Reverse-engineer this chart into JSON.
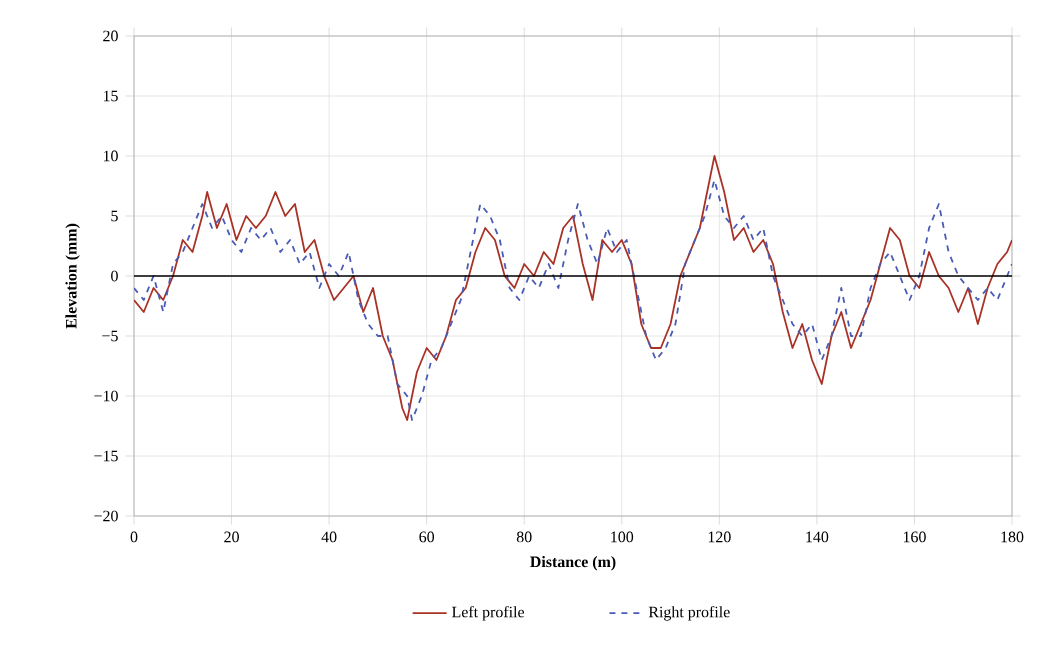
{
  "chart_data": {
    "type": "line",
    "xlabel": "Distance (m)",
    "ylabel": "Elevation (mm)",
    "xlim": [
      0,
      180
    ],
    "ylim": [
      -20,
      20
    ],
    "xticks": [
      0,
      20,
      40,
      60,
      80,
      100,
      120,
      140,
      160,
      180
    ],
    "yticks": [
      {
        "value": -20,
        "label": "−20"
      },
      {
        "value": -15,
        "label": "−15"
      },
      {
        "value": -10,
        "label": "−10"
      },
      {
        "value": -5,
        "label": "−5"
      },
      0,
      5,
      10,
      15,
      20
    ],
    "grid": true,
    "legend": "bottom",
    "ref_lines": [
      {
        "axis": "y",
        "value": 0,
        "color": "#000000"
      }
    ],
    "series": [
      {
        "name": "Left profile",
        "color": "#a93226",
        "line_style": "solid",
        "x": [
          0,
          2,
          4,
          6,
          8,
          10,
          12,
          14,
          15,
          17,
          19,
          21,
          23,
          25,
          27,
          29,
          31,
          33,
          35,
          37,
          39,
          41,
          43,
          45,
          47,
          49,
          51,
          53,
          55,
          56,
          58,
          60,
          62,
          64,
          66,
          68,
          70,
          72,
          74,
          76,
          78,
          80,
          82,
          84,
          86,
          88,
          90,
          92,
          94,
          96,
          98,
          100,
          102,
          104,
          106,
          108,
          110,
          112,
          114,
          116,
          118,
          119,
          121,
          123,
          125,
          127,
          129,
          131,
          133,
          135,
          137,
          139,
          141,
          143,
          145,
          147,
          149,
          151,
          153,
          155,
          157,
          159,
          161,
          163,
          165,
          167,
          169,
          171,
          173,
          175,
          177,
          179,
          180
        ],
        "values": [
          -2,
          -3,
          -1,
          -2,
          0,
          3,
          2,
          5,
          7,
          4,
          6,
          3,
          5,
          4,
          5,
          7,
          5,
          6,
          2,
          3,
          0,
          -2,
          -1,
          0,
          -3,
          -1,
          -5,
          -7,
          -11,
          -12,
          -8,
          -6,
          -7,
          -5,
          -2,
          -1,
          2,
          4,
          3,
          0,
          -1,
          1,
          0,
          2,
          1,
          4,
          5,
          1,
          -2,
          3,
          2,
          3,
          1,
          -4,
          -6,
          -6,
          -4,
          0,
          2,
          4,
          8,
          10,
          7,
          3,
          4,
          2,
          3,
          1,
          -3,
          -6,
          -4,
          -7,
          -9,
          -5,
          -3,
          -6,
          -4,
          -2,
          1,
          4,
          3,
          0,
          -1,
          2,
          0,
          -1,
          -3,
          -1,
          -4,
          -1,
          1,
          2,
          3
        ]
      },
      {
        "name": "Right profile",
        "color": "#4a5bb5",
        "line_style": "dashed",
        "x": [
          0,
          2,
          4,
          6,
          8,
          10,
          12,
          14,
          16,
          18,
          20,
          22,
          24,
          26,
          28,
          30,
          32,
          34,
          36,
          38,
          40,
          42,
          44,
          46,
          48,
          50,
          52,
          54,
          56,
          57,
          59,
          61,
          63,
          65,
          67,
          69,
          71,
          73,
          75,
          77,
          79,
          81,
          83,
          85,
          87,
          89,
          91,
          93,
          95,
          97,
          99,
          101,
          103,
          105,
          107,
          109,
          111,
          113,
          115,
          117,
          119,
          121,
          123,
          125,
          127,
          129,
          131,
          133,
          135,
          137,
          139,
          141,
          143,
          145,
          147,
          149,
          151,
          153,
          155,
          157,
          159,
          161,
          163,
          165,
          167,
          169,
          171,
          173,
          175,
          177,
          179,
          180
        ],
        "values": [
          -1,
          -2,
          0,
          -3,
          1,
          2,
          4,
          6,
          4,
          5,
          3,
          2,
          4,
          3,
          4,
          2,
          3,
          1,
          2,
          -1,
          1,
          0,
          2,
          -2,
          -4,
          -5,
          -5,
          -9,
          -10,
          -12,
          -10,
          -7,
          -6,
          -4,
          -2,
          2,
          6,
          5,
          3,
          -1,
          -2,
          0,
          -1,
          1,
          -1,
          3,
          6,
          3,
          1,
          4,
          2,
          3,
          -1,
          -5,
          -7,
          -6,
          -4,
          1,
          3,
          5,
          8,
          5,
          4,
          5,
          3,
          4,
          0,
          -2,
          -4,
          -5,
          -4,
          -7,
          -5,
          -1,
          -5,
          -5,
          -1,
          1,
          2,
          0,
          -2,
          0,
          4,
          6,
          2,
          0,
          -1,
          -2,
          -1,
          -2,
          0,
          1
        ]
      }
    ]
  }
}
